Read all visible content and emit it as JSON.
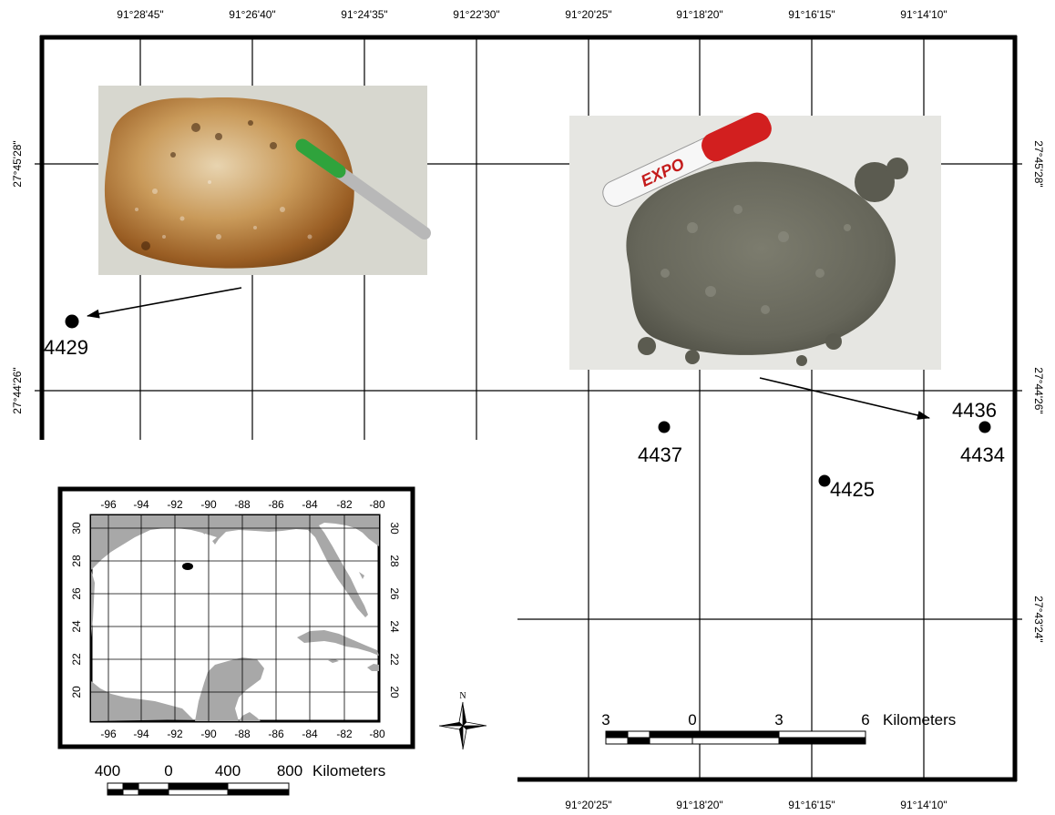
{
  "top_lon_labels": [
    "91°28'45\"",
    "91°26'40\"",
    "91°24'35\"",
    "91°22'30\"",
    "91°20'25\"",
    "91°18'20\"",
    "91°16'15\"",
    "91°14'10\""
  ],
  "bottom_lon_labels": [
    "91°20'25\"",
    "91°18'20\"",
    "91°16'15\"",
    "91°14'10\""
  ],
  "left_lat_labels": [
    "27°45'28\"",
    "27°44'26\""
  ],
  "right_lat_labels": [
    "27°45'28\"",
    "27°44'26\"",
    "27°43'24\""
  ],
  "sites": {
    "s4429": "4429",
    "s4437": "4437",
    "s4425": "4425",
    "s4436": "4436",
    "s4434": "4434"
  },
  "photos": {
    "marker_left": "marker-pen-icon",
    "marker_right": "expo-marker-icon",
    "expo_text": "EXPO"
  },
  "inset": {
    "lon_labels": [
      "-96",
      "-94",
      "-92",
      "-90",
      "-88",
      "-86",
      "-84",
      "-82",
      "-80"
    ],
    "lat_labels": [
      "30",
      "28",
      "26",
      "24",
      "22",
      "20"
    ],
    "scale_labels": [
      "400",
      "0",
      "400",
      "800"
    ],
    "scale_unit": "Kilometers",
    "land_color": "#a8a8a8"
  },
  "main_scale": {
    "labels": [
      "3",
      "0",
      "3",
      "6"
    ],
    "unit": "Kilometers"
  },
  "north_arrow": {
    "letter": "N"
  }
}
